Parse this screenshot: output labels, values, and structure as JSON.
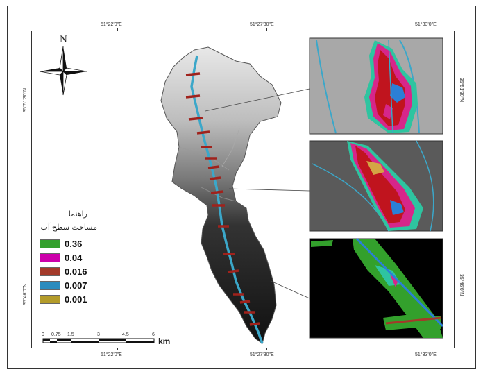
{
  "coords": {
    "top": [
      "51°22'0\"E",
      "51°27'30\"E",
      "51°33'0\"E"
    ],
    "bottom": [
      "51°22'0\"E",
      "51°27'30\"E",
      "51°33'0\"E"
    ],
    "left": [
      "35°51'30\"N",
      "35°46'0\"N"
    ],
    "right": [
      "35°51'30\"N",
      "35°46'0\"N"
    ]
  },
  "north_label": "N",
  "legend": {
    "title": "راهنما",
    "subtitle": "مساحت سطح آب",
    "items": [
      {
        "label": "0.36",
        "color": "#33a02c"
      },
      {
        "label": "0.04",
        "color": "#cc00aa"
      },
      {
        "label": "0.016",
        "color": "#a33a2a"
      },
      {
        "label": "0.007",
        "color": "#2b8cbe"
      },
      {
        "label": "0.001",
        "color": "#b39b2a"
      }
    ]
  },
  "scale": {
    "ticks": [
      "0",
      "0.75",
      "1.5",
      "3",
      "4.5",
      "6"
    ],
    "unit": "km"
  }
}
